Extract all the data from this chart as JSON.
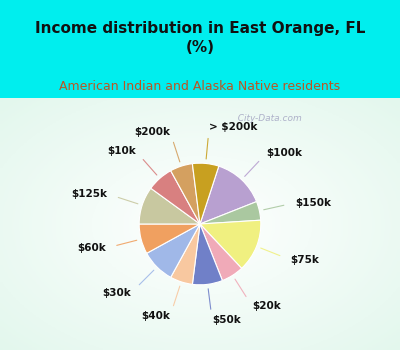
{
  "title": "Income distribution in East Orange, FL\n(%)",
  "subtitle": "American Indian and Alaska Native residents",
  "bg_cyan": "#00EEEE",
  "bg_chart_color": "#c8ead8",
  "labels": [
    "$100k",
    "$150k",
    "$75k",
    "$20k",
    "$50k",
    "$40k",
    "$30k",
    "$60k",
    "$125k",
    "$10k",
    "$200k",
    "> $200k"
  ],
  "values": [
    14,
    5,
    14,
    6,
    8,
    6,
    9,
    8,
    10,
    7,
    6,
    7
  ],
  "colors": [
    "#b8a0d0",
    "#aac8a0",
    "#f0f080",
    "#f0aab8",
    "#7080c8",
    "#f8c8a0",
    "#a0b8e8",
    "#f0a060",
    "#c8c8a0",
    "#d88080",
    "#d4a060",
    "#c8a020"
  ],
  "title_fontsize": 11,
  "subtitle_fontsize": 9,
  "label_fontsize": 7.5,
  "watermark": "  City-Data.com"
}
